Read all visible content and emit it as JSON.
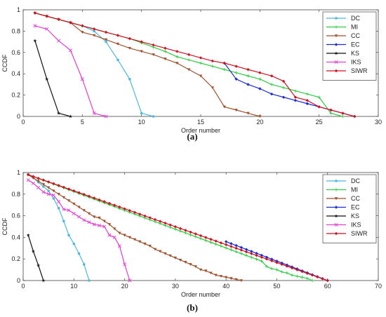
{
  "chart_data": [
    {
      "type": "line",
      "caption": "(a)",
      "xlabel": "Order number",
      "ylabel": "CCDF",
      "xlim": [
        0,
        30
      ],
      "ylim": [
        0,
        1
      ],
      "xticks": [
        0,
        5,
        10,
        15,
        20,
        25,
        30
      ],
      "yticks": [
        0,
        0.2,
        0.4,
        0.6,
        0.8,
        1
      ],
      "legend_position": "top-right",
      "series": [
        {
          "name": "DC",
          "color": "#4cb8e0",
          "marker": "dot",
          "points": [
            [
              1,
              0.97
            ],
            [
              2,
              0.94
            ],
            [
              3,
              0.91
            ],
            [
              4,
              0.88
            ],
            [
              5,
              0.85
            ],
            [
              6,
              0.8
            ],
            [
              7,
              0.7
            ],
            [
              8,
              0.53
            ],
            [
              9,
              0.35
            ],
            [
              10,
              0.03
            ],
            [
              11,
              0.0
            ]
          ]
        },
        {
          "name": "MI",
          "color": "#2ecc40",
          "marker": "plus",
          "points": [
            [
              1,
              0.97
            ],
            [
              2,
              0.94
            ],
            [
              3,
              0.91
            ],
            [
              4,
              0.88
            ],
            [
              5,
              0.85
            ],
            [
              6,
              0.82
            ],
            [
              7,
              0.79
            ],
            [
              8,
              0.76
            ],
            [
              9,
              0.73
            ],
            [
              10,
              0.69
            ],
            [
              11,
              0.65
            ],
            [
              12,
              0.61
            ],
            [
              13,
              0.56
            ],
            [
              14,
              0.53
            ],
            [
              15,
              0.5
            ],
            [
              16,
              0.47
            ],
            [
              17,
              0.44
            ],
            [
              18,
              0.41
            ],
            [
              19,
              0.38
            ],
            [
              20,
              0.35
            ],
            [
              21,
              0.3
            ],
            [
              22,
              0.27
            ],
            [
              23,
              0.24
            ],
            [
              24,
              0.21
            ],
            [
              25,
              0.18
            ],
            [
              26,
              0.03
            ],
            [
              27,
              0.0
            ]
          ]
        },
        {
          "name": "CC",
          "color": "#a0522d",
          "marker": "tri-down",
          "points": [
            [
              1,
              0.97
            ],
            [
              2,
              0.94
            ],
            [
              3,
              0.91
            ],
            [
              4,
              0.88
            ],
            [
              5,
              0.79
            ],
            [
              6,
              0.76
            ],
            [
              7,
              0.72
            ],
            [
              8,
              0.68
            ],
            [
              9,
              0.64
            ],
            [
              10,
              0.61
            ],
            [
              11,
              0.58
            ],
            [
              12,
              0.54
            ],
            [
              13,
              0.5
            ],
            [
              14,
              0.44
            ],
            [
              15,
              0.38
            ],
            [
              16,
              0.27
            ],
            [
              17,
              0.09
            ],
            [
              18,
              0.06
            ],
            [
              19,
              0.03
            ],
            [
              20,
              0.0
            ]
          ]
        },
        {
          "name": "EC",
          "color": "#1a2ad6",
          "marker": "diamond",
          "points": [
            [
              17,
              0.5
            ],
            [
              18,
              0.35
            ],
            [
              19,
              0.3
            ],
            [
              20,
              0.26
            ],
            [
              21,
              0.21
            ],
            [
              22,
              0.18
            ],
            [
              23,
              0.15
            ],
            [
              24,
              0.12
            ],
            [
              25,
              0.09
            ],
            [
              26,
              0.06
            ],
            [
              27,
              0.03
            ],
            [
              28,
              0.0
            ]
          ]
        },
        {
          "name": "KS",
          "color": "#111111",
          "marker": "star",
          "points": [
            [
              1,
              0.71
            ],
            [
              2,
              0.35
            ],
            [
              3,
              0.03
            ],
            [
              4,
              0.0
            ]
          ]
        },
        {
          "name": "IKS",
          "color": "#e83ad6",
          "marker": "x",
          "points": [
            [
              1,
              0.85
            ],
            [
              2,
              0.82
            ],
            [
              3,
              0.71
            ],
            [
              4,
              0.62
            ],
            [
              5,
              0.35
            ],
            [
              6,
              0.03
            ],
            [
              7,
              0.0
            ]
          ]
        },
        {
          "name": "SIWR",
          "color": "#d01020",
          "marker": "diamond",
          "points": [
            [
              1,
              0.97
            ],
            [
              2,
              0.94
            ],
            [
              3,
              0.91
            ],
            [
              4,
              0.88
            ],
            [
              5,
              0.85
            ],
            [
              6,
              0.82
            ],
            [
              7,
              0.79
            ],
            [
              8,
              0.76
            ],
            [
              9,
              0.73
            ],
            [
              10,
              0.7
            ],
            [
              11,
              0.67
            ],
            [
              12,
              0.64
            ],
            [
              13,
              0.61
            ],
            [
              14,
              0.58
            ],
            [
              15,
              0.55
            ],
            [
              16,
              0.52
            ],
            [
              17,
              0.5
            ],
            [
              18,
              0.47
            ],
            [
              19,
              0.44
            ],
            [
              20,
              0.41
            ],
            [
              21,
              0.38
            ],
            [
              22,
              0.33
            ],
            [
              23,
              0.18
            ],
            [
              24,
              0.15
            ],
            [
              25,
              0.09
            ],
            [
              26,
              0.06
            ],
            [
              27,
              0.03
            ],
            [
              28,
              0.0
            ]
          ]
        }
      ]
    },
    {
      "type": "line",
      "caption": "(b)",
      "xlabel": "Order number",
      "ylabel": "CCDF",
      "xlim": [
        0,
        70
      ],
      "ylim": [
        0,
        1
      ],
      "xticks": [
        0,
        10,
        20,
        30,
        40,
        50,
        60,
        70
      ],
      "yticks": [
        0,
        0.2,
        0.4,
        0.6,
        0.8,
        1
      ],
      "legend_position": "top-right",
      "series": [
        {
          "name": "DC",
          "color": "#4cb8e0",
          "marker": "dot",
          "points": [
            [
              1,
              0.98
            ],
            [
              2,
              0.95
            ],
            [
              3,
              0.91
            ],
            [
              4,
              0.87
            ],
            [
              5,
              0.83
            ],
            [
              6,
              0.76
            ],
            [
              7,
              0.67
            ],
            [
              8,
              0.55
            ],
            [
              9,
              0.42
            ],
            [
              10,
              0.34
            ],
            [
              11,
              0.25
            ],
            [
              12,
              0.15
            ],
            [
              13,
              0.0
            ]
          ]
        },
        {
          "name": "MI",
          "color": "#2ecc40",
          "marker": "plus",
          "linear": {
            "x0": 1,
            "y0": 0.98,
            "x1": 47,
            "y1": 0.18
          },
          "tail": [
            [
              48,
              0.13
            ],
            [
              49,
              0.11
            ],
            [
              50,
              0.1
            ],
            [
              51,
              0.08
            ],
            [
              52,
              0.07
            ],
            [
              53,
              0.05
            ],
            [
              54,
              0.04
            ],
            [
              55,
              0.03
            ],
            [
              56,
              0.02
            ],
            [
              57,
              0.0
            ]
          ]
        },
        {
          "name": "CC",
          "color": "#a0522d",
          "marker": "tri-down",
          "points": [
            [
              1,
              0.98
            ],
            [
              2,
              0.95
            ],
            [
              3,
              0.92
            ],
            [
              4,
              0.89
            ],
            [
              5,
              0.86
            ],
            [
              6,
              0.83
            ],
            [
              7,
              0.8
            ],
            [
              8,
              0.77
            ],
            [
              9,
              0.74
            ],
            [
              10,
              0.71
            ],
            [
              11,
              0.68
            ],
            [
              12,
              0.65
            ],
            [
              13,
              0.62
            ],
            [
              14,
              0.59
            ],
            [
              15,
              0.58
            ],
            [
              16,
              0.55
            ],
            [
              17,
              0.52
            ],
            [
              18,
              0.48
            ],
            [
              19,
              0.44
            ],
            [
              20,
              0.42
            ],
            [
              21,
              0.4
            ],
            [
              22,
              0.38
            ],
            [
              23,
              0.36
            ],
            [
              24,
              0.34
            ],
            [
              25,
              0.32
            ],
            [
              26,
              0.29
            ],
            [
              27,
              0.27
            ],
            [
              28,
              0.25
            ],
            [
              29,
              0.23
            ],
            [
              30,
              0.21
            ],
            [
              31,
              0.19
            ],
            [
              32,
              0.17
            ],
            [
              33,
              0.15
            ],
            [
              34,
              0.13
            ],
            [
              35,
              0.1
            ],
            [
              36,
              0.09
            ],
            [
              37,
              0.07
            ],
            [
              38,
              0.05
            ],
            [
              39,
              0.04
            ],
            [
              40,
              0.03
            ],
            [
              41,
              0.02
            ],
            [
              42,
              0.01
            ],
            [
              43,
              0.0
            ]
          ]
        },
        {
          "name": "EC",
          "color": "#1a2ad6",
          "marker": "diamond",
          "linear": {
            "x0": 40,
            "y0": 0.36,
            "x1": 60,
            "y1": 0.0
          }
        },
        {
          "name": "KS",
          "color": "#111111",
          "marker": "star",
          "points": [
            [
              1,
              0.42
            ],
            [
              2,
              0.27
            ],
            [
              3,
              0.14
            ],
            [
              4,
              0.0
            ]
          ]
        },
        {
          "name": "IKS",
          "color": "#e83ad6",
          "marker": "x",
          "points": [
            [
              1,
              0.93
            ],
            [
              2,
              0.9
            ],
            [
              3,
              0.86
            ],
            [
              4,
              0.82
            ],
            [
              5,
              0.8
            ],
            [
              6,
              0.79
            ],
            [
              7,
              0.73
            ],
            [
              8,
              0.66
            ],
            [
              9,
              0.65
            ],
            [
              10,
              0.62
            ],
            [
              11,
              0.59
            ],
            [
              12,
              0.56
            ],
            [
              13,
              0.54
            ],
            [
              14,
              0.52
            ],
            [
              15,
              0.51
            ],
            [
              16,
              0.5
            ],
            [
              17,
              0.42
            ],
            [
              18,
              0.4
            ],
            [
              19,
              0.32
            ],
            [
              20,
              0.15
            ],
            [
              21,
              0.0
            ]
          ]
        },
        {
          "name": "SIWR",
          "color": "#d01020",
          "marker": "diamond",
          "linear": {
            "x0": 1,
            "y0": 0.98,
            "x1": 60,
            "y1": 0.0
          }
        }
      ]
    }
  ]
}
